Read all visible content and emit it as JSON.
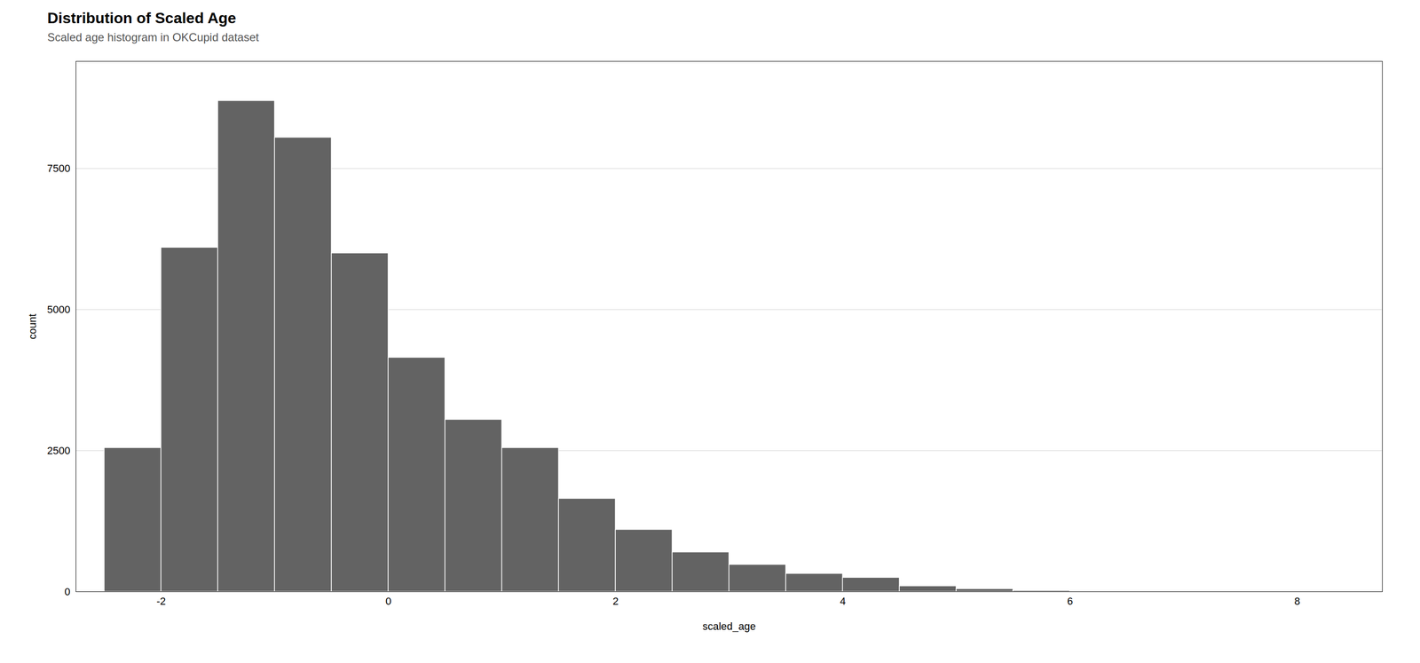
{
  "chart_data": {
    "type": "histogram",
    "title": "Distribution of Scaled Age",
    "subtitle": "Scaled age histogram in OKCupid dataset",
    "x_label": "scaled_age",
    "y_label": "count",
    "bins": [
      -2.5,
      -2.0,
      -1.5,
      -1.0,
      -0.5,
      0.0,
      0.5,
      1.0,
      1.5,
      2.0,
      2.5,
      3.0,
      3.5,
      4.0,
      4.5,
      5.0,
      5.5,
      6.0,
      6.5,
      7.0,
      7.5,
      8.0
    ],
    "values": [
      2550,
      6100,
      8700,
      8050,
      6000,
      4150,
      3050,
      2550,
      1650,
      1100,
      700,
      480,
      320,
      250,
      100,
      50,
      20,
      8,
      3,
      1,
      0
    ],
    "color": "#636363",
    "xlim": [
      -2.75,
      8.75
    ],
    "xticks": [
      -2,
      0,
      2,
      4,
      6,
      8
    ],
    "ylim": [
      0,
      9400
    ],
    "yticks": [
      0,
      2500,
      5000,
      7500
    ],
    "grid": "y"
  }
}
